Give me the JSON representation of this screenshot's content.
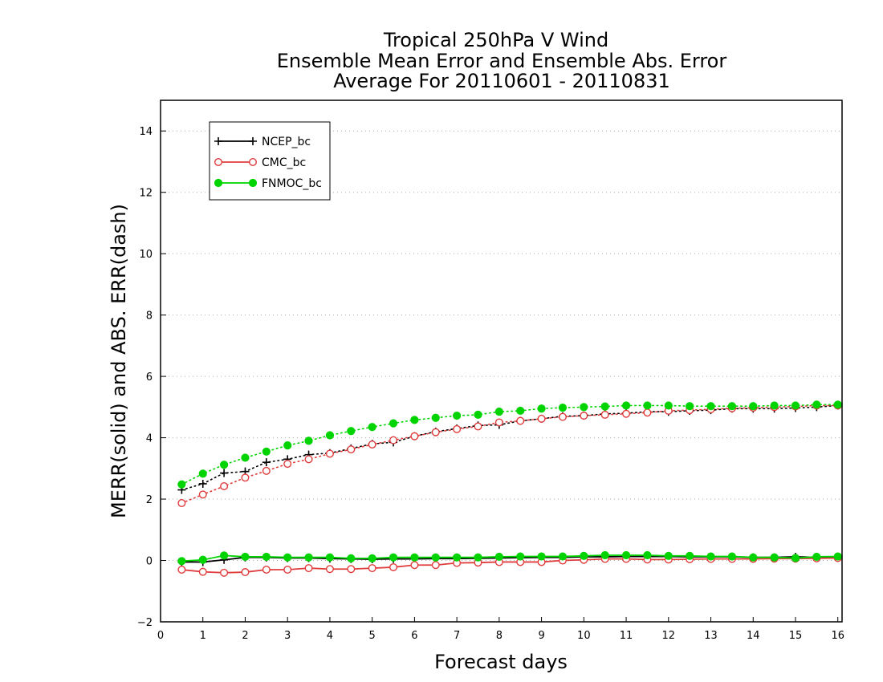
{
  "chart_data": {
    "type": "line",
    "title": [
      "Tropical 250hPa V Wind",
      "Ensemble Mean Error and Ensemble Abs. Error",
      "Average For 20110601 - 20110831"
    ],
    "xlabel": "Forecast days",
    "ylabel": "MERR(solid) and ABS. ERR(dash)",
    "xlim": [
      0,
      16.1
    ],
    "ylim": [
      -2,
      15
    ],
    "xticks": [
      0,
      1,
      2,
      3,
      4,
      5,
      6,
      7,
      8,
      9,
      10,
      11,
      12,
      13,
      14,
      15,
      16
    ],
    "yticks": [
      -2,
      0,
      2,
      4,
      6,
      8,
      10,
      12,
      14
    ],
    "grid": "horizontal dotted at y ticks",
    "legend_position": "top-left",
    "x": [
      0.5,
      1,
      1.5,
      2,
      2.5,
      3,
      3.5,
      4,
      4.5,
      5,
      5.5,
      6,
      6.5,
      7,
      7.5,
      8,
      8.5,
      9,
      9.5,
      10,
      10.5,
      11,
      11.5,
      12,
      12.5,
      13,
      13.5,
      14,
      14.5,
      15,
      15.5,
      16
    ],
    "series": [
      {
        "name": "NCEP_bc",
        "color": "#000000",
        "marker": "plus",
        "merr": [
          -0.05,
          -0.05,
          0.02,
          0.1,
          0.1,
          0.08,
          0.08,
          0.06,
          0.05,
          0.04,
          0.05,
          0.05,
          0.06,
          0.06,
          0.07,
          0.08,
          0.09,
          0.1,
          0.1,
          0.12,
          0.12,
          0.13,
          0.13,
          0.13,
          0.12,
          0.12,
          0.12,
          0.1,
          0.1,
          0.12,
          0.1,
          0.1
        ],
        "abs_err": [
          2.3,
          2.5,
          2.85,
          2.9,
          3.2,
          3.3,
          3.45,
          3.5,
          3.65,
          3.8,
          3.85,
          4.05,
          4.2,
          4.3,
          4.4,
          4.42,
          4.55,
          4.62,
          4.7,
          4.72,
          4.78,
          4.8,
          4.85,
          4.85,
          4.88,
          4.9,
          4.95,
          4.95,
          4.95,
          4.97,
          5.0,
          5.05
        ]
      },
      {
        "name": "CMC_bc",
        "color": "#e03c3c",
        "marker": "open-circle",
        "merr": [
          -0.3,
          -0.37,
          -0.4,
          -0.38,
          -0.3,
          -0.3,
          -0.25,
          -0.28,
          -0.28,
          -0.25,
          -0.22,
          -0.15,
          -0.15,
          -0.08,
          -0.07,
          -0.05,
          -0.05,
          -0.05,
          0.0,
          0.02,
          0.05,
          0.05,
          0.03,
          0.03,
          0.04,
          0.05,
          0.05,
          0.05,
          0.06,
          0.06,
          0.07,
          0.08
        ],
        "abs_err": [
          1.87,
          2.15,
          2.42,
          2.7,
          2.92,
          3.15,
          3.3,
          3.48,
          3.62,
          3.78,
          3.92,
          4.05,
          4.18,
          4.28,
          4.37,
          4.5,
          4.55,
          4.62,
          4.68,
          4.72,
          4.75,
          4.78,
          4.82,
          4.88,
          4.9,
          4.93,
          4.96,
          4.98,
          5.0,
          5.02,
          5.05,
          5.05
        ]
      },
      {
        "name": "FNMOC_bc",
        "color": "#00d400",
        "marker": "filled-circle",
        "merr": [
          -0.02,
          0.02,
          0.16,
          0.12,
          0.12,
          0.1,
          0.1,
          0.1,
          0.07,
          0.07,
          0.1,
          0.1,
          0.1,
          0.1,
          0.1,
          0.12,
          0.13,
          0.13,
          0.13,
          0.15,
          0.17,
          0.17,
          0.17,
          0.15,
          0.15,
          0.13,
          0.13,
          0.1,
          0.1,
          0.08,
          0.12,
          0.13
        ],
        "abs_err": [
          2.48,
          2.83,
          3.12,
          3.35,
          3.55,
          3.75,
          3.9,
          4.08,
          4.22,
          4.35,
          4.47,
          4.58,
          4.65,
          4.72,
          4.75,
          4.85,
          4.88,
          4.95,
          4.98,
          5.0,
          5.02,
          5.05,
          5.05,
          5.05,
          5.03,
          5.03,
          5.03,
          5.03,
          5.05,
          5.05,
          5.08,
          5.08
        ]
      }
    ]
  }
}
